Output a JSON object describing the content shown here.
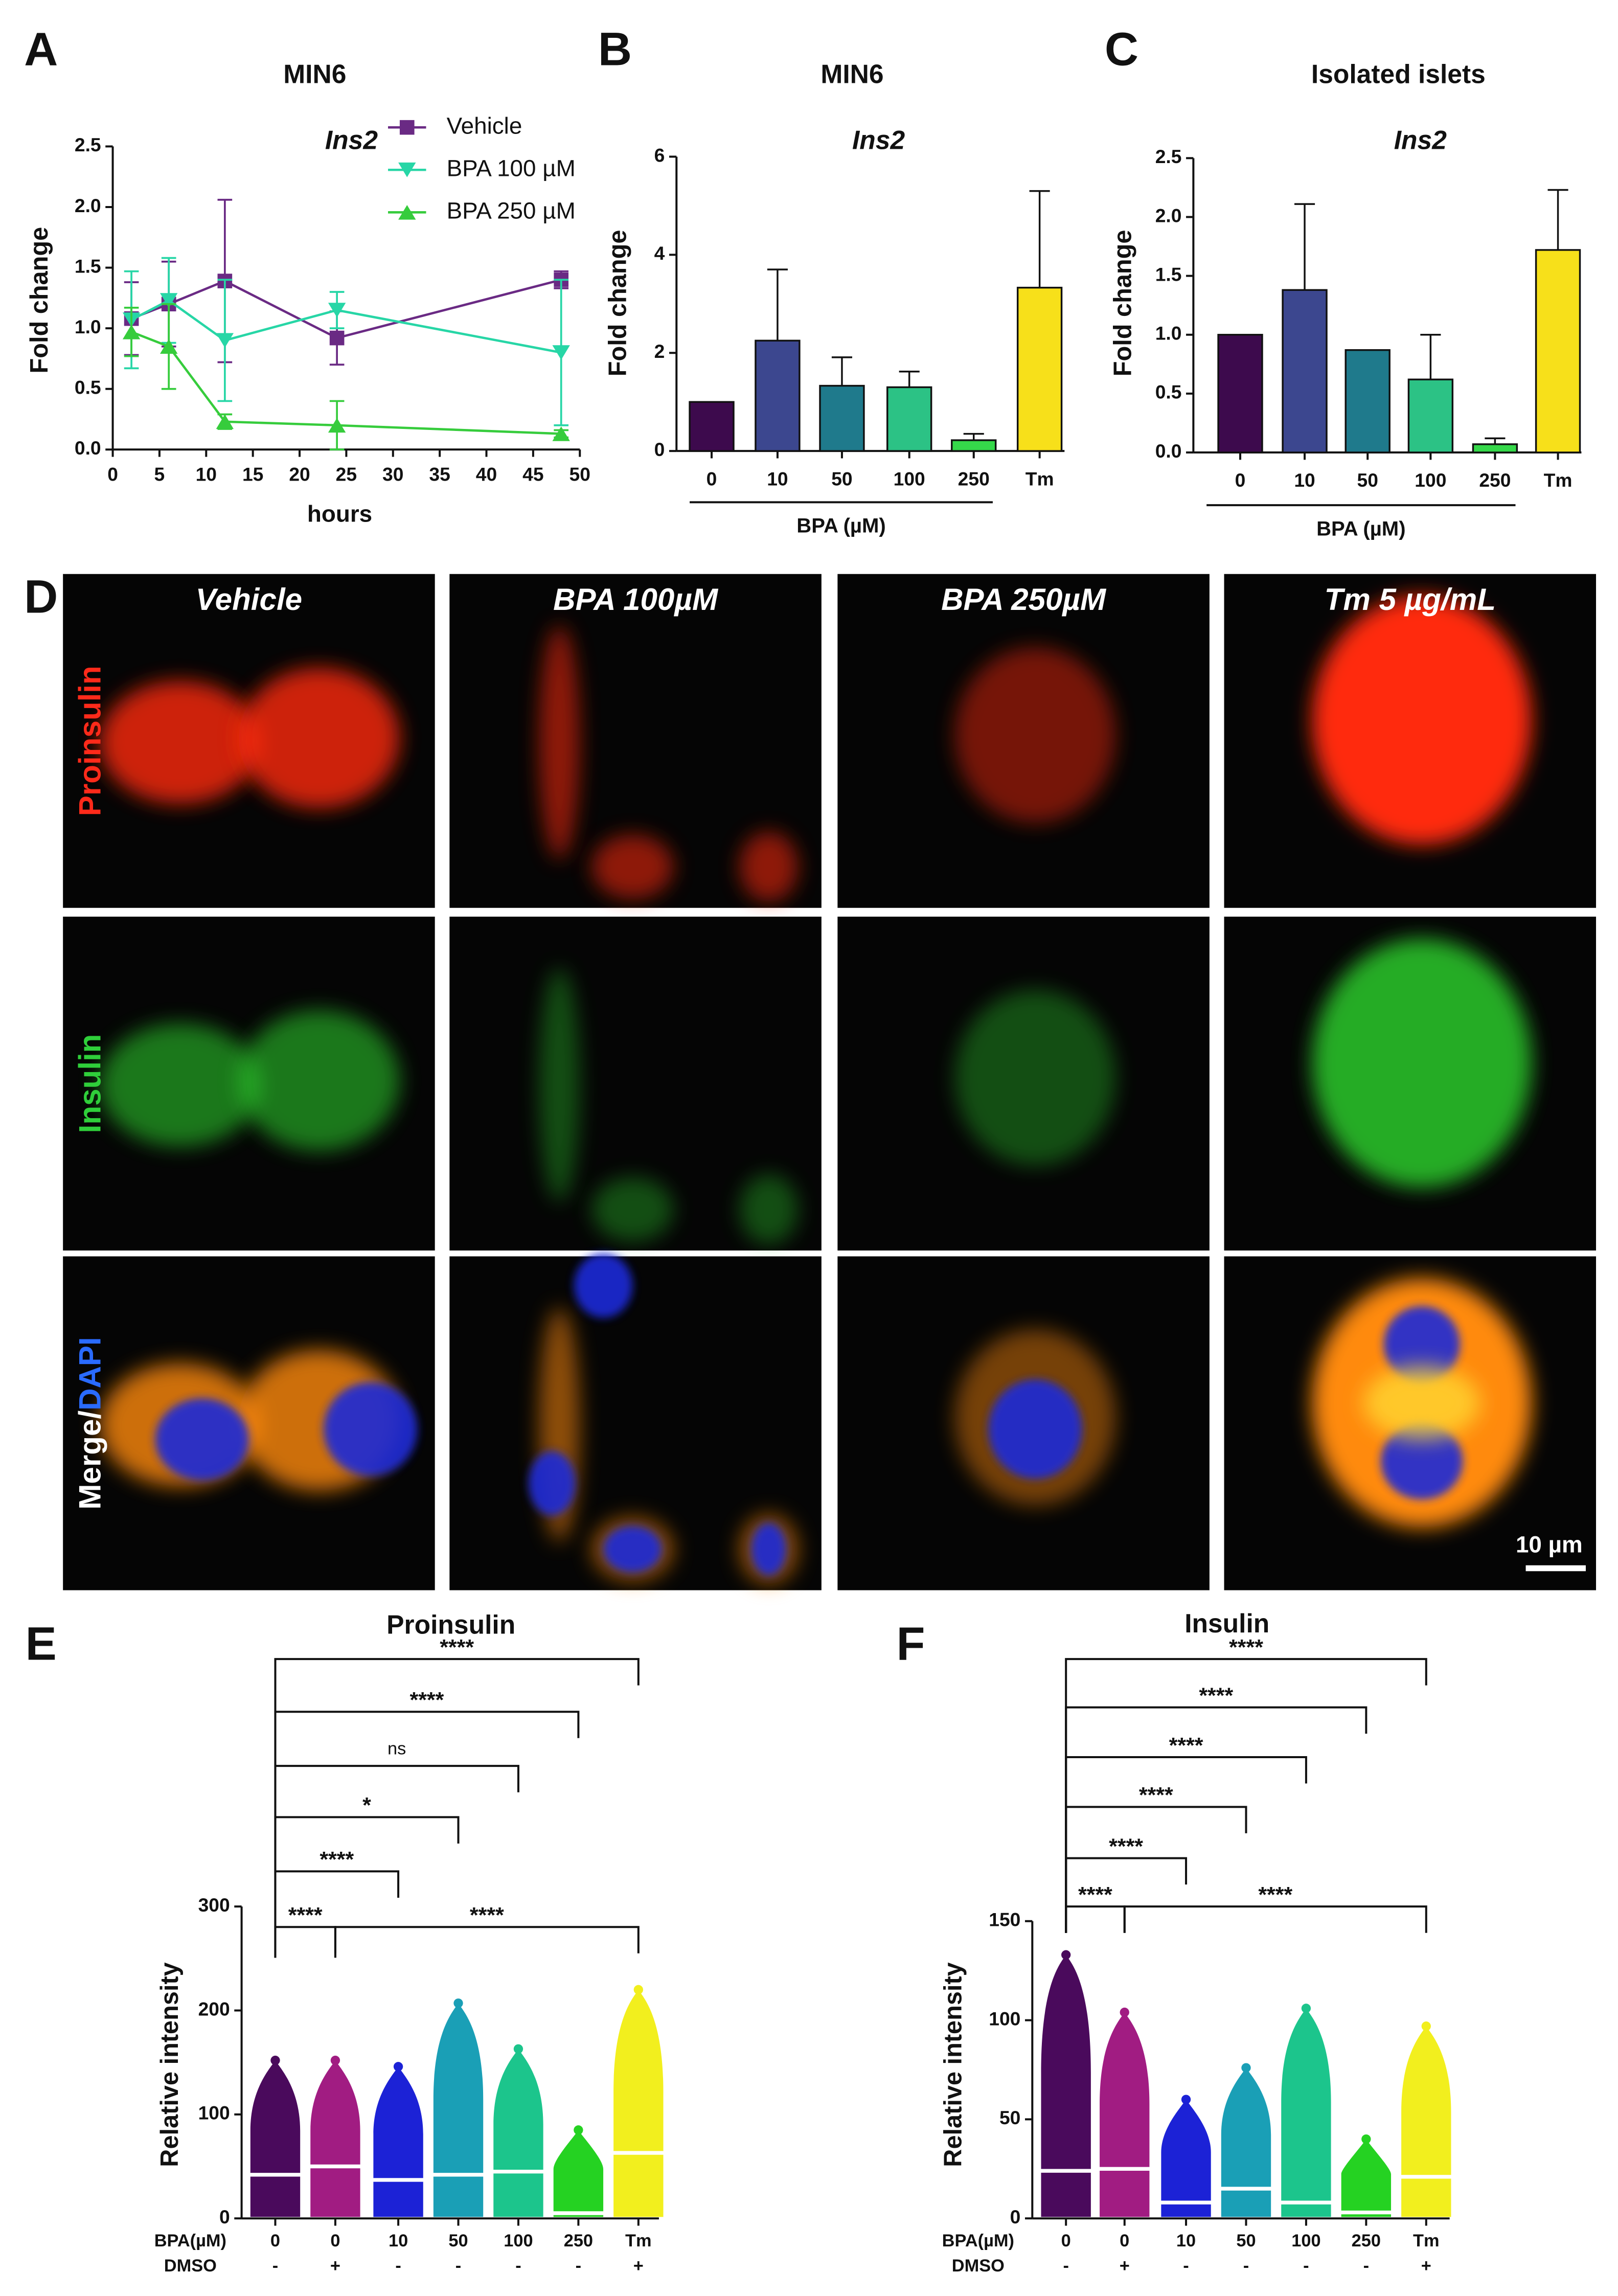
{
  "chart_data": [
    {
      "type": "line",
      "panel": "A",
      "title": "MIN6",
      "subtitle": "Ins2",
      "xlabel": "hours",
      "ylabel": "Fold change",
      "x": [
        2,
        6,
        12,
        24,
        48
      ],
      "series": [
        {
          "name": "Vehicle",
          "color": "#6a2a84",
          "marker": "square",
          "values": [
            1.08,
            1.2,
            1.39,
            0.92,
            1.4
          ],
          "errors": [
            0.3,
            0.35,
            0.67,
            0.22,
            0.07
          ]
        },
        {
          "name": "BPA 100 µM",
          "color": "#27d6a6",
          "marker": "triangle-down",
          "values": [
            1.07,
            1.23,
            0.9,
            1.15,
            0.8
          ],
          "errors": [
            0.4,
            0.35,
            0.5,
            0.15,
            0.6
          ]
        },
        {
          "name": "BPA 250 µM",
          "color": "#36cc3c",
          "marker": "triangle-up",
          "values": [
            0.97,
            0.85,
            0.23,
            0.2,
            0.13
          ],
          "errors": [
            0.2,
            0.35,
            0.06,
            0.2,
            0.03
          ]
        }
      ],
      "xlim": [
        0,
        50
      ],
      "xticks": [
        0,
        5,
        10,
        15,
        20,
        25,
        30,
        35,
        40,
        45,
        50
      ],
      "ylim": [
        0,
        2.5
      ],
      "yticks": [
        {
          "value": 0,
          "label": "0.0"
        },
        0.5,
        {
          "value": 1,
          "label": "1.0"
        },
        1.5,
        {
          "value": 2,
          "label": "2.0"
        },
        2.5
      ]
    },
    {
      "type": "bar",
      "panel": "B",
      "title": "MIN6",
      "subtitle": "Ins2",
      "ylabel": "Fold change",
      "group_label": "BPA (µM)",
      "categories": [
        "0",
        "10",
        "50",
        "100",
        "250",
        "Tm"
      ],
      "values": [
        1,
        2.25,
        1.33,
        1.3,
        0.22,
        3.33
      ],
      "errors": [
        null,
        1.45,
        0.58,
        0.32,
        0.13,
        1.97
      ],
      "colors": [
        "#3d0a4d",
        "#3c478f",
        "#1f7a8c",
        "#2cc285",
        "#35d84a",
        "#f7e01a"
      ],
      "ylim": [
        0,
        6
      ],
      "yticks": [
        0,
        2,
        4,
        6
      ]
    },
    {
      "type": "bar",
      "panel": "C",
      "title": "Isolated islets",
      "subtitle": "Ins2",
      "ylabel": "Fold change",
      "group_label": "BPA (µM)",
      "categories": [
        "0",
        "10",
        "50",
        "100",
        "250",
        "Tm"
      ],
      "values": [
        1,
        1.38,
        0.87,
        0.62,
        0.07,
        1.72
      ],
      "errors": [
        null,
        0.73,
        null,
        0.38,
        0.05,
        0.51
      ],
      "colors": [
        "#3d0a4d",
        "#3c478f",
        "#1f7a8c",
        "#2cc285",
        "#35d84a",
        "#f7e01a"
      ],
      "ylim": [
        0,
        2.5
      ],
      "yticks": [
        {
          "value": 0,
          "label": "0.0"
        },
        0.5,
        {
          "value": 1,
          "label": "1.0"
        },
        1.5,
        {
          "value": 2,
          "label": "2.0"
        },
        2.5
      ]
    },
    {
      "type": "swarm",
      "panel": "E",
      "title": "Proinsulin",
      "ylabel": "Relative intensity",
      "row_labels": [
        "BPA(µM)",
        "DMSO"
      ],
      "categories": [
        "0",
        "0",
        "10",
        "50",
        "100",
        "250",
        "Tm"
      ],
      "dmso": [
        "-",
        "+",
        "-",
        "-",
        "-",
        "-",
        "+"
      ],
      "medians": [
        42,
        50,
        37,
        42,
        45,
        5,
        63
      ],
      "maxima": [
        152,
        152,
        146,
        207,
        163,
        85,
        220
      ],
      "colors": [
        "#4a0a5c",
        "#a11c82",
        "#1c22d6",
        "#1a9fb6",
        "#1cc58c",
        "#25d222",
        "#f2ef1e"
      ],
      "comparisons": [
        "****",
        "****",
        "ns",
        "*",
        "****",
        "****",
        "****"
      ],
      "ylim": [
        0,
        300
      ],
      "yticks": [
        0,
        100,
        200,
        300
      ]
    },
    {
      "type": "swarm",
      "panel": "F",
      "title": "Insulin",
      "ylabel": "Relative intensity",
      "row_labels": [
        "BPA(µM)",
        "DMSO"
      ],
      "categories": [
        "0",
        "0",
        "10",
        "50",
        "100",
        "250",
        "Tm"
      ],
      "dmso": [
        "-",
        "+",
        "-",
        "-",
        "-",
        "-",
        "+"
      ],
      "medians": [
        24,
        25,
        8,
        15,
        8,
        3,
        21
      ],
      "maxima": [
        133,
        104,
        60,
        76,
        106,
        40,
        97
      ],
      "colors": [
        "#4a0a5c",
        "#a11c82",
        "#1c22d6",
        "#1a9fb6",
        "#1cc58c",
        "#25d222",
        "#f2ef1e"
      ],
      "comparisons": [
        "****",
        "****",
        "****",
        "****",
        "****",
        "****",
        "****"
      ],
      "ylim": [
        0,
        150
      ],
      "yticks": [
        0,
        50,
        100,
        150
      ]
    }
  ],
  "micrograph": {
    "panel": "D",
    "columns": [
      "Vehicle",
      "BPA 100µM",
      "BPA 250µM",
      "Tm  5 µg/mL"
    ],
    "rows": [
      "Proinsulin",
      "Insulin"
    ],
    "merge_label": "Merge/",
    "dapi_label": "DAPI",
    "scale_bar": "10 µm"
  }
}
